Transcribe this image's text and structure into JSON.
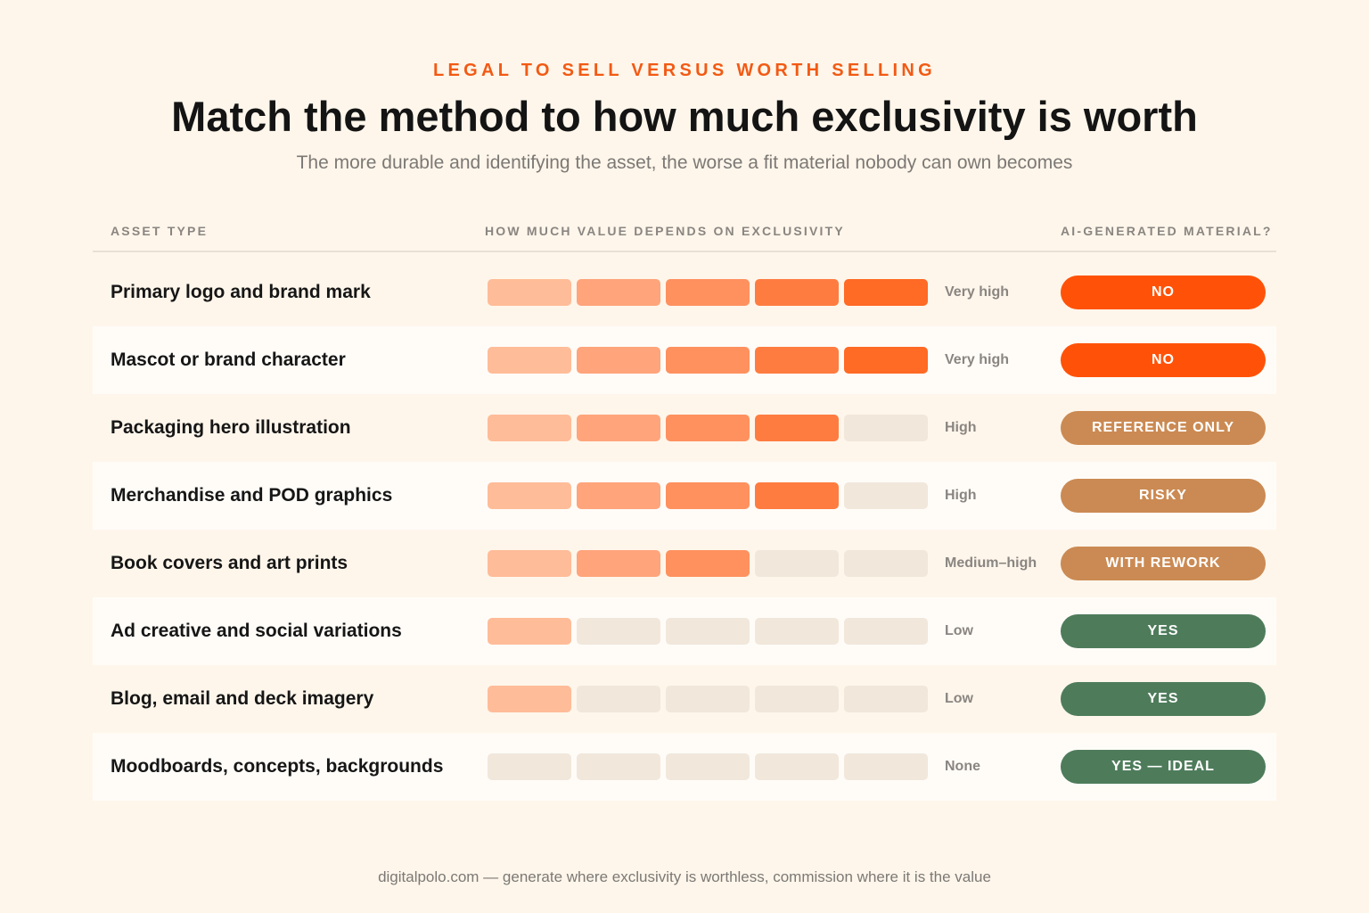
{
  "header": {
    "eyebrow": "LEGAL TO SELL VERSUS WORTH SELLING",
    "title": "Match the method to how much exclusivity is worth",
    "subtitle": "The more durable and identifying the asset, the worse a fit material nobody can own becomes"
  },
  "columns": {
    "asset": "ASSET TYPE",
    "value": "HOW MUCH VALUE DEPENDS ON EXCLUSIVITY",
    "ai": "AI-GENERATED MATERIAL?"
  },
  "scale": {
    "max": 5,
    "segment_colors": [
      "#FFBC98",
      "#FFA47B",
      "#FF915F",
      "#FF7C40",
      "#FF6A25"
    ],
    "empty_color": "#F1E7DB"
  },
  "verdict_colors": {
    "no": "#FF5208",
    "caution": "#CB8A53",
    "yes": "#4E7C5B"
  },
  "rows": [
    {
      "asset": "Primary logo and brand mark",
      "score": 5,
      "level": "Very high",
      "verdict": "NO",
      "tone": "no"
    },
    {
      "asset": "Mascot or brand character",
      "score": 5,
      "level": "Very high",
      "verdict": "NO",
      "tone": "no"
    },
    {
      "asset": "Packaging hero illustration",
      "score": 4,
      "level": "High",
      "verdict": "REFERENCE ONLY",
      "tone": "caution"
    },
    {
      "asset": "Merchandise and POD graphics",
      "score": 4,
      "level": "High",
      "verdict": "RISKY",
      "tone": "caution"
    },
    {
      "asset": "Book covers and art prints",
      "score": 3,
      "level": "Medium–high",
      "verdict": "WITH REWORK",
      "tone": "caution"
    },
    {
      "asset": "Ad creative and social variations",
      "score": 1,
      "level": "Low",
      "verdict": "YES",
      "tone": "yes"
    },
    {
      "asset": "Blog, email and deck imagery",
      "score": 1,
      "level": "Low",
      "verdict": "YES",
      "tone": "yes"
    },
    {
      "asset": "Moodboards, concepts, backgrounds",
      "score": 0,
      "level": "None",
      "verdict": "YES — IDEAL",
      "tone": "yes"
    }
  ],
  "footer": "digitalpolo.com — generate where exclusivity is worthless, commission where it is the value"
}
